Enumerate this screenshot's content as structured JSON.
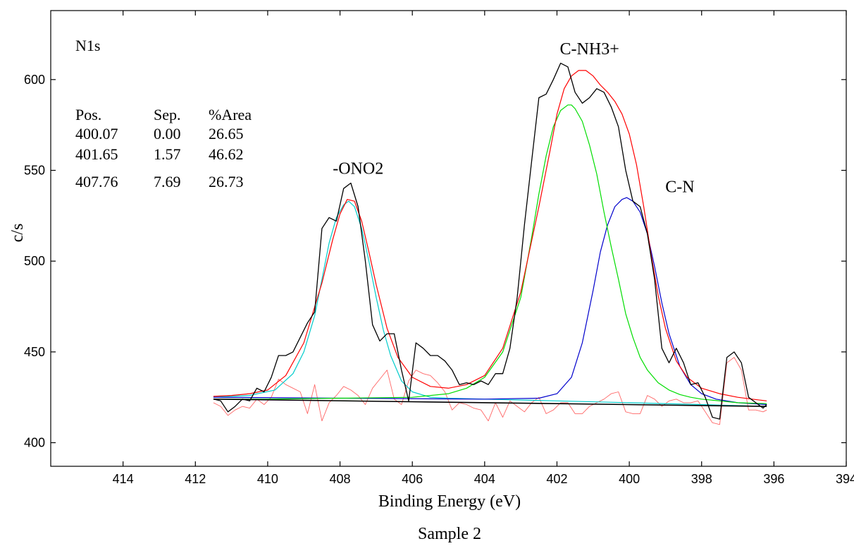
{
  "chart_data": {
    "type": "line",
    "title": "",
    "xlabel": "Binding Energy (eV)",
    "ylabel": "c/s",
    "caption": "Sample 2",
    "xlim": [
      416,
      394
    ],
    "ylim": [
      387,
      638
    ],
    "x_ticks": [
      414,
      412,
      410,
      408,
      406,
      404,
      402,
      400,
      398,
      396,
      394
    ],
    "y_ticks": [
      400,
      450,
      500,
      550,
      600
    ],
    "grid": false,
    "legend": "none",
    "annotations": {
      "region": "N1s",
      "peak_table": {
        "headers": [
          "Pos.",
          "Sep.",
          "%Area"
        ],
        "rows": [
          [
            "400.07",
            "0.00",
            "26.65"
          ],
          [
            "401.65",
            "1.57",
            "46.62"
          ],
          [
            "407.76",
            "7.69",
            "26.73"
          ]
        ]
      },
      "peak_labels": [
        {
          "text": "-ONO2",
          "x": 407.5,
          "y": 548
        },
        {
          "text": "C-NH3+",
          "x": 401.1,
          "y": 614
        },
        {
          "text": "C-N",
          "x": 398.6,
          "y": 538
        }
      ]
    },
    "series": [
      {
        "role": "measured",
        "color": "#000000",
        "x": [
          411.5,
          411.3,
          411.1,
          410.9,
          410.7,
          410.5,
          410.3,
          410.1,
          409.9,
          409.7,
          409.5,
          409.3,
          409.1,
          408.9,
          408.7,
          408.5,
          408.3,
          408.1,
          407.9,
          407.7,
          407.5,
          407.3,
          407.1,
          406.9,
          406.7,
          406.5,
          406.3,
          406.1,
          405.9,
          405.7,
          405.5,
          405.3,
          405.1,
          404.9,
          404.7,
          404.5,
          404.3,
          404.1,
          403.9,
          403.7,
          403.5,
          403.3,
          403.1,
          402.9,
          402.7,
          402.5,
          402.3,
          402.1,
          401.9,
          401.7,
          401.5,
          401.3,
          401.1,
          400.9,
          400.7,
          400.5,
          400.3,
          400.1,
          399.9,
          399.7,
          399.5,
          399.3,
          399.1,
          398.9,
          398.7,
          398.5,
          398.3,
          398.1,
          397.9,
          397.7,
          397.5,
          397.3,
          397.1,
          396.9,
          396.7,
          396.5,
          396.3,
          396.2
        ],
        "y": [
          424,
          423,
          417,
          420,
          424,
          423,
          430,
          428,
          436,
          448,
          448,
          450,
          458,
          466,
          472,
          518,
          524,
          522,
          540,
          543,
          530,
          500,
          465,
          456,
          460,
          460,
          440,
          423,
          455,
          452,
          448,
          448,
          445,
          440,
          432,
          433,
          432,
          434,
          432,
          438,
          438,
          452,
          480,
          520,
          555,
          590,
          592,
          600,
          609,
          607,
          593,
          587,
          590,
          595,
          593,
          585,
          574,
          550,
          533,
          530,
          515,
          490,
          452,
          444,
          452,
          444,
          432,
          433,
          425,
          414,
          413,
          447,
          450,
          444,
          425,
          422,
          419,
          421
        ]
      },
      {
        "role": "envelope",
        "color": "#ff0000",
        "x": [
          411.5,
          411.0,
          410.5,
          410.0,
          409.5,
          409.0,
          408.5,
          408.2,
          408.0,
          407.8,
          407.6,
          407.4,
          407.2,
          407.0,
          406.7,
          406.4,
          406.0,
          405.5,
          405.0,
          404.5,
          404.0,
          403.5,
          403.0,
          402.5,
          402.2,
          402.0,
          401.8,
          401.6,
          401.4,
          401.2,
          401.0,
          400.8,
          400.6,
          400.4,
          400.2,
          400.0,
          399.8,
          399.6,
          399.4,
          399.2,
          399.0,
          398.7,
          398.4,
          398.0,
          397.5,
          397.0,
          396.6,
          396.2
        ],
        "y": [
          425.5,
          426,
          427,
          429,
          437,
          455,
          488,
          512,
          526,
          534,
          533,
          522,
          505,
          487,
          463,
          447,
          436,
          431,
          430,
          432,
          437,
          452,
          483,
          530,
          560,
          581,
          595,
          602,
          605,
          605,
          602,
          597,
          593,
          588,
          581,
          570,
          553,
          530,
          504,
          481,
          463,
          445,
          436,
          430,
          427,
          425,
          424,
          423
        ]
      },
      {
        "role": "component C-NH3+",
        "color": "#00dd00",
        "x": [
          411.5,
          410.0,
          408.0,
          406.0,
          405.0,
          404.5,
          404.0,
          403.5,
          403.0,
          402.7,
          402.5,
          402.3,
          402.1,
          401.9,
          401.7,
          401.6,
          401.5,
          401.3,
          401.1,
          400.9,
          400.7,
          400.5,
          400.3,
          400.1,
          399.9,
          399.7,
          399.5,
          399.2,
          398.9,
          398.6,
          398.3,
          398.0,
          397.5,
          397.0,
          396.2
        ],
        "y": [
          424,
          424,
          424.5,
          425,
          427,
          430,
          436,
          450,
          480,
          513,
          537,
          558,
          574,
          583,
          586,
          586,
          584,
          577,
          564,
          548,
          527,
          508,
          490,
          471,
          458,
          447,
          440,
          433,
          429,
          426.5,
          425,
          424,
          423,
          422,
          421.5
        ]
      },
      {
        "role": "component C-N",
        "color": "#0000cc",
        "x": [
          411.5,
          408.0,
          404.0,
          402.5,
          402.0,
          401.6,
          401.3,
          401.0,
          400.8,
          400.6,
          400.4,
          400.2,
          400.07,
          399.9,
          399.7,
          399.5,
          399.3,
          399.1,
          398.9,
          398.6,
          398.3,
          398.0,
          397.6,
          397.0,
          396.2
        ],
        "y": [
          425,
          424.5,
          424,
          424.5,
          427,
          436,
          455,
          484,
          505,
          520,
          530,
          534,
          535,
          533,
          527,
          515,
          497,
          477,
          460,
          442,
          432,
          427,
          424,
          422,
          421
        ]
      },
      {
        "role": "component -ONO2",
        "color": "#00cccc",
        "x": [
          411.5,
          410.5,
          409.8,
          409.3,
          409.0,
          408.7,
          408.5,
          408.3,
          408.1,
          407.9,
          407.76,
          407.6,
          407.4,
          407.2,
          407.0,
          406.8,
          406.6,
          406.3,
          406.0,
          405.5,
          405.0,
          404.0,
          402.0,
          400.0,
          398.0,
          396.2
        ],
        "y": [
          425,
          426,
          429,
          438,
          450,
          470,
          490,
          510,
          524,
          531,
          533,
          530,
          518,
          500,
          480,
          462,
          448,
          434,
          428,
          425,
          424.5,
          424,
          423,
          422,
          421,
          420
        ]
      },
      {
        "role": "background",
        "color": "#000000",
        "x": [
          411.5,
          396.2
        ],
        "y": [
          424,
          420
        ]
      },
      {
        "role": "residual",
        "color": "#ff6666",
        "x": [
          411.5,
          411.3,
          411.1,
          410.9,
          410.7,
          410.5,
          410.3,
          410.1,
          409.9,
          409.7,
          409.5,
          409.3,
          409.1,
          408.9,
          408.7,
          408.5,
          408.3,
          408.1,
          407.9,
          407.7,
          407.5,
          407.3,
          407.1,
          406.9,
          406.7,
          406.5,
          406.3,
          406.1,
          405.9,
          405.7,
          405.5,
          405.3,
          405.1,
          404.9,
          404.7,
          404.5,
          404.3,
          404.1,
          403.9,
          403.7,
          403.5,
          403.3,
          403.1,
          402.9,
          402.7,
          402.5,
          402.3,
          402.1,
          401.9,
          401.7,
          401.5,
          401.3,
          401.1,
          400.9,
          400.7,
          400.5,
          400.3,
          400.1,
          399.9,
          399.7,
          399.5,
          399.3,
          399.1,
          398.9,
          398.7,
          398.5,
          398.3,
          398.1,
          397.9,
          397.7,
          397.5,
          397.3,
          397.1,
          396.9,
          396.7,
          396.5,
          396.3,
          396.2
        ],
        "y": [
          422,
          420,
          415,
          418,
          420,
          419,
          424,
          421,
          425,
          435,
          432,
          430,
          428,
          416,
          432,
          412,
          422,
          426,
          431,
          429,
          426,
          421,
          430,
          435,
          440,
          424,
          421,
          434,
          440,
          438,
          437,
          433,
          428,
          418,
          422,
          421,
          419,
          418,
          412,
          422,
          414,
          423,
          420,
          417,
          422,
          425,
          416,
          418,
          422,
          422,
          416,
          416,
          420,
          422,
          424,
          427,
          428,
          417,
          416,
          416,
          426,
          424,
          420,
          423,
          424,
          422,
          422,
          423,
          417,
          411,
          410,
          444,
          447,
          440,
          418,
          418,
          417,
          418
        ]
      }
    ]
  }
}
